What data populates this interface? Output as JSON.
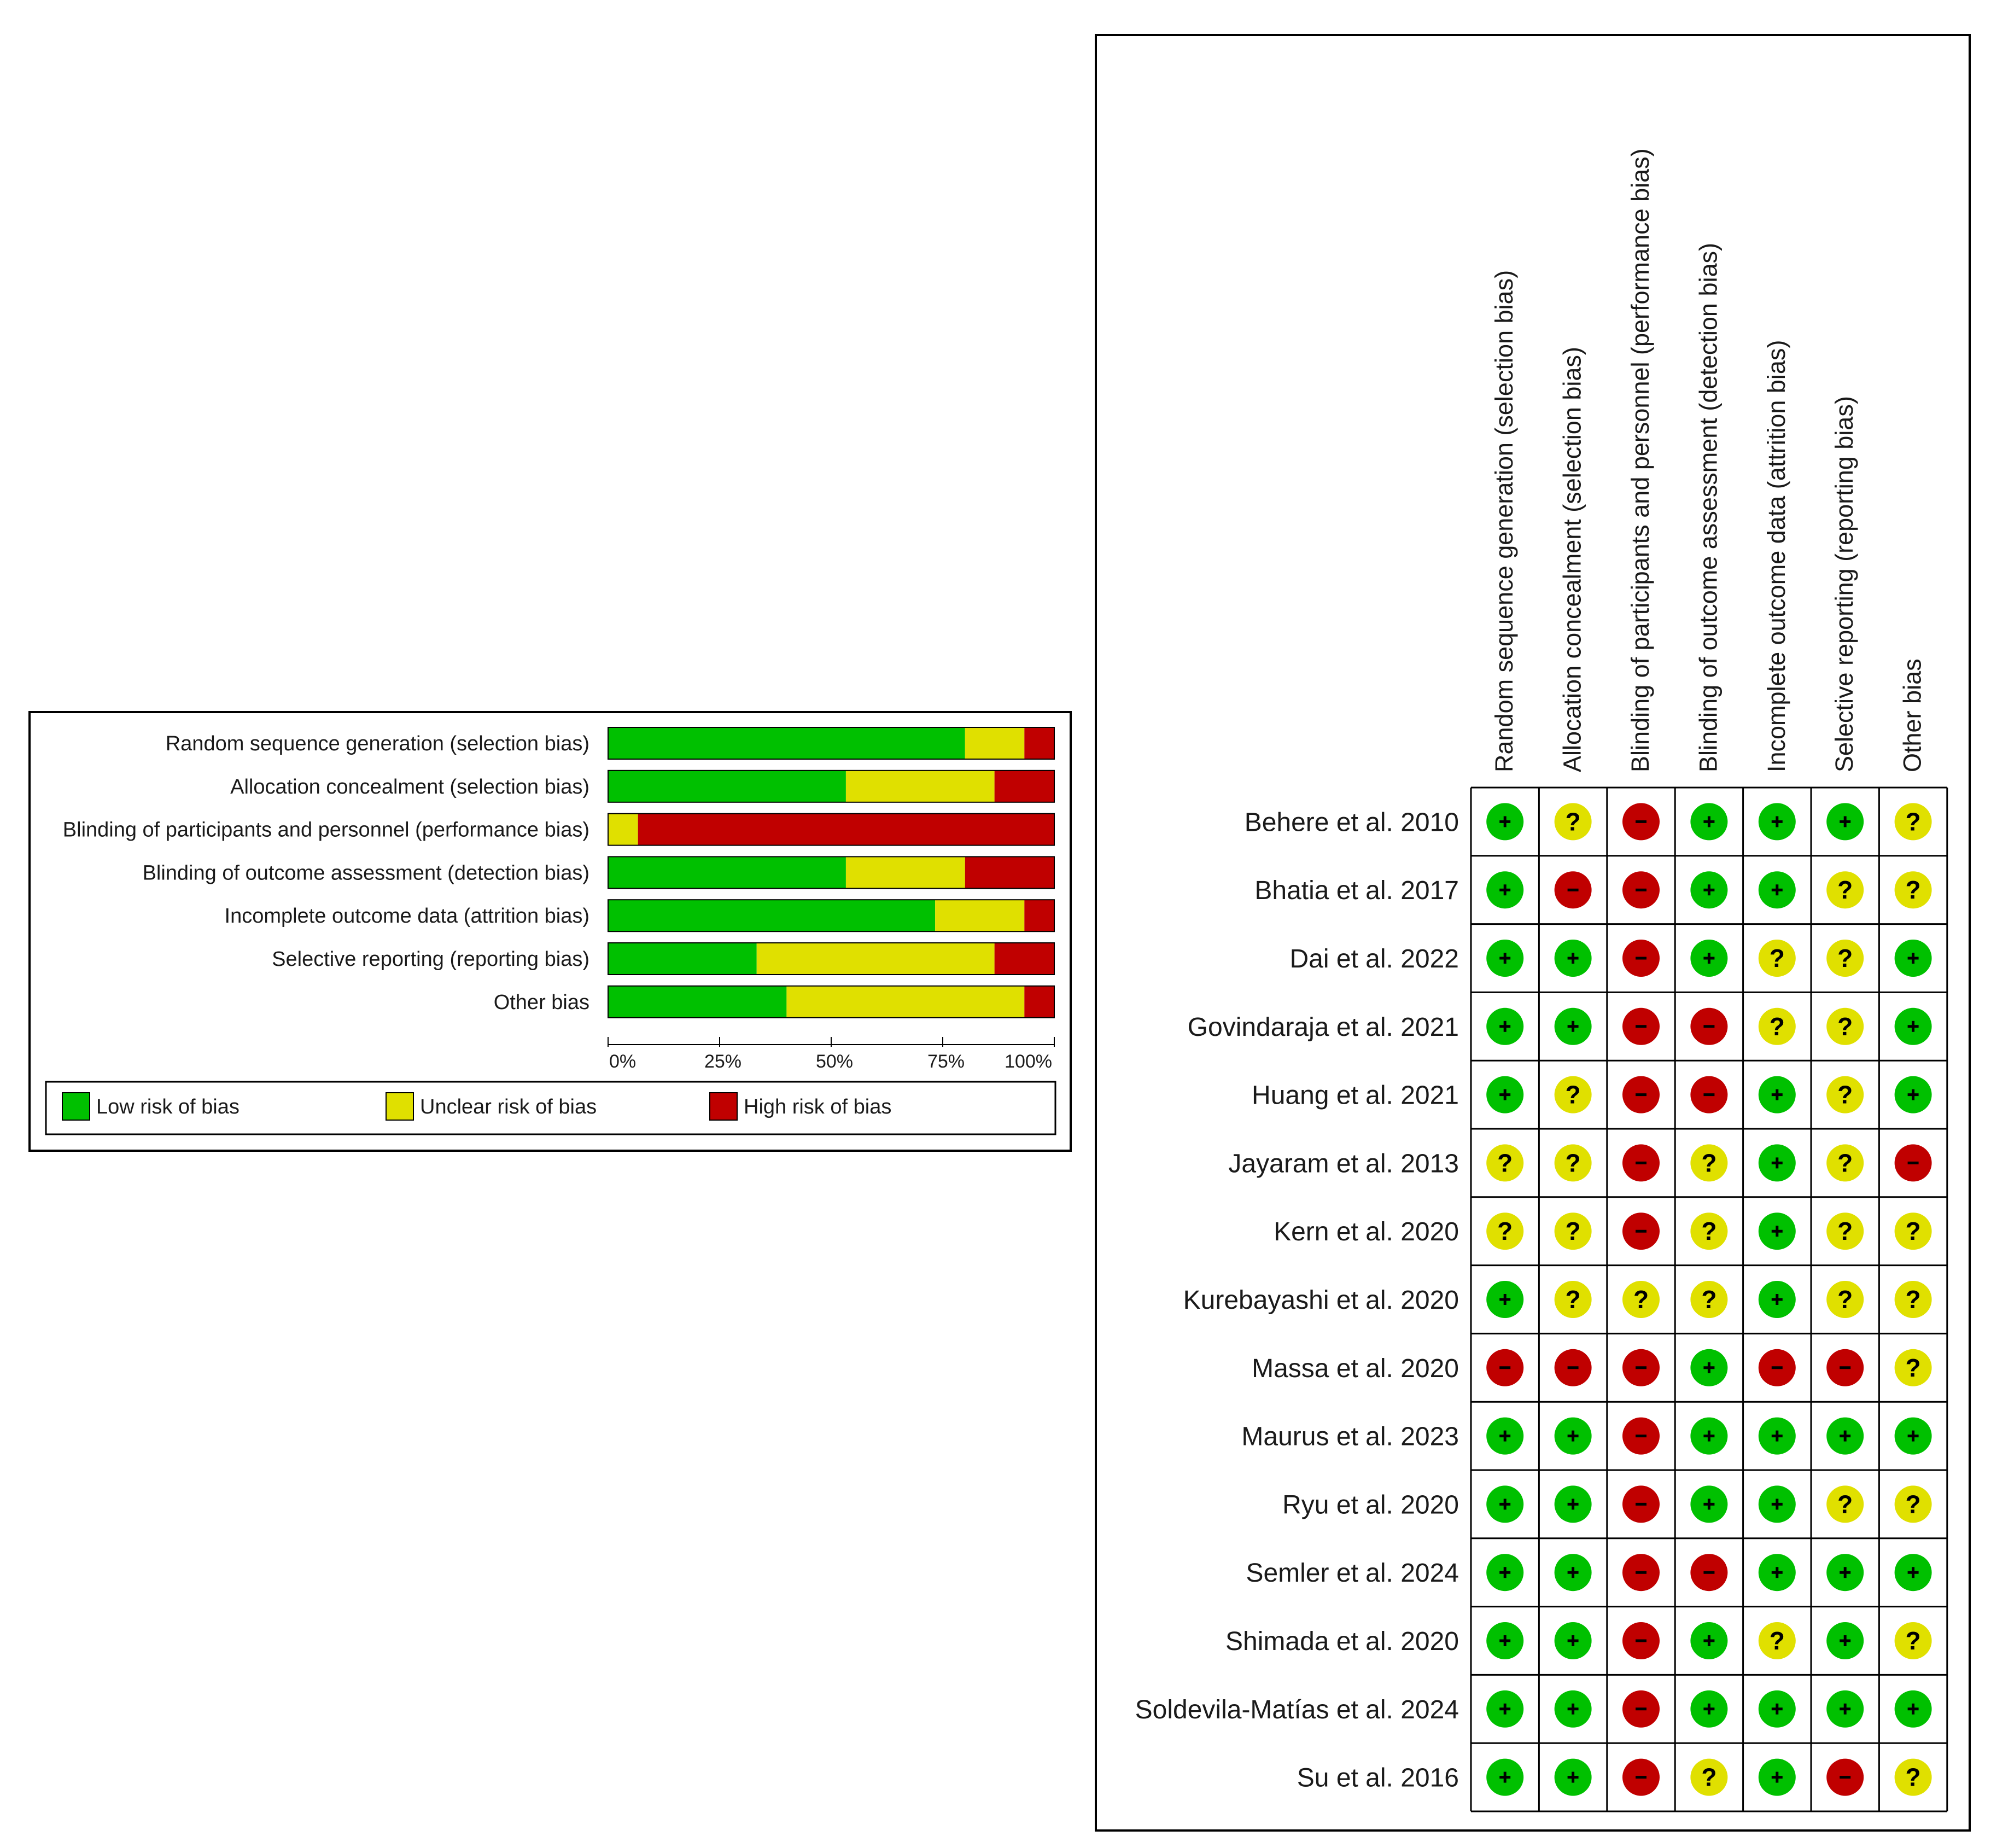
{
  "chart_data": [
    {
      "type": "bar",
      "subtype": "stacked-horizontal-percent",
      "title": "",
      "categories": [
        "Random sequence generation (selection bias)",
        "Allocation concealment (selection bias)",
        "Blinding of participants and personnel (performance bias)",
        "Blinding of outcome assessment (detection bias)",
        "Incomplete outcome data (attrition bias)",
        "Selective reporting (reporting bias)",
        "Other bias"
      ],
      "series": [
        {
          "name": "Low risk of bias",
          "color": "#00c000",
          "values": [
            80,
            53.3,
            0,
            53.3,
            73.3,
            33.3,
            40
          ]
        },
        {
          "name": "Unclear risk of bias",
          "color": "#e0e000",
          "values": [
            13.3,
            33.3,
            6.7,
            26.7,
            20,
            53.3,
            53.3
          ]
        },
        {
          "name": "High risk of bias",
          "color": "#c00000",
          "values": [
            6.7,
            13.3,
            93.3,
            20,
            6.7,
            13.3,
            6.7
          ]
        }
      ],
      "xlim": [
        0,
        100
      ],
      "x_ticks": [
        "0%",
        "25%",
        "50%",
        "75%",
        "100%"
      ],
      "legend": [
        "Low risk of bias",
        "Unclear risk of bias",
        "High risk of bias"
      ],
      "legend_position": "bottom"
    },
    {
      "type": "table",
      "subtype": "risk-of-bias-summary",
      "columns": [
        "Random sequence generation (selection bias)",
        "Allocation concealment (selection bias)",
        "Blinding of participants and personnel (performance bias)",
        "Blinding of outcome assessment (detection bias)",
        "Incomplete outcome data (attrition bias)",
        "Selective reporting (reporting bias)",
        "Other bias"
      ],
      "rows": [
        {
          "study": "Behere et al. 2010",
          "judgements": [
            "+",
            "?",
            "-",
            "+",
            "+",
            "+",
            "?"
          ]
        },
        {
          "study": "Bhatia et al. 2017",
          "judgements": [
            "+",
            "-",
            "-",
            "+",
            "+",
            "?",
            "?"
          ]
        },
        {
          "study": "Dai et al. 2022",
          "judgements": [
            "+",
            "+",
            "-",
            "+",
            "?",
            "?",
            "+"
          ]
        },
        {
          "study": "Govindaraja et al. 2021",
          "judgements": [
            "+",
            "+",
            "-",
            "-",
            "?",
            "?",
            "+"
          ]
        },
        {
          "study": "Huang et al. 2021",
          "judgements": [
            "+",
            "?",
            "-",
            "-",
            "+",
            "?",
            "+"
          ]
        },
        {
          "study": "Jayaram et al. 2013",
          "judgements": [
            "?",
            "?",
            "-",
            "?",
            "+",
            "?",
            "-"
          ]
        },
        {
          "study": "Kern et al. 2020",
          "judgements": [
            "?",
            "?",
            "-",
            "?",
            "+",
            "?",
            "?"
          ]
        },
        {
          "study": "Kurebayashi et al. 2020",
          "judgements": [
            "+",
            "?",
            "?",
            "?",
            "+",
            "?",
            "?"
          ]
        },
        {
          "study": "Massa et al. 2020",
          "judgements": [
            "-",
            "-",
            "-",
            "+",
            "-",
            "-",
            "?"
          ]
        },
        {
          "study": "Maurus et al. 2023",
          "judgements": [
            "+",
            "+",
            "-",
            "+",
            "+",
            "+",
            "+"
          ]
        },
        {
          "study": "Ryu et al. 2020",
          "judgements": [
            "+",
            "+",
            "-",
            "+",
            "+",
            "?",
            "?"
          ]
        },
        {
          "study": "Semler et al. 2024",
          "judgements": [
            "+",
            "+",
            "-",
            "-",
            "+",
            "+",
            "+"
          ]
        },
        {
          "study": "Shimada et al. 2020",
          "judgements": [
            "+",
            "+",
            "-",
            "+",
            "?",
            "+",
            "?"
          ]
        },
        {
          "study": "Soldevila-Matías et al. 2024",
          "judgements": [
            "+",
            "+",
            "-",
            "+",
            "+",
            "+",
            "+"
          ]
        },
        {
          "study": "Su et al. 2016",
          "judgements": [
            "+",
            "+",
            "-",
            "?",
            "+",
            "-",
            "?"
          ]
        }
      ],
      "judgement_colors": {
        "+": "#00c000",
        "?": "#e0e000",
        "-": "#c00000"
      }
    }
  ]
}
